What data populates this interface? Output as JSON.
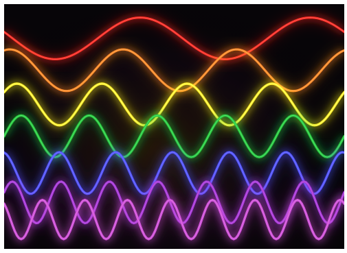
{
  "image": {
    "subject": "rainbow-sine-waves",
    "background_color": "#070508",
    "frame_color": "#ffffff",
    "waves": [
      {
        "name": "red-wave",
        "color": "#ff2a22",
        "cycles": 2,
        "amplitude": 0.085,
        "phase": 0.45,
        "baseline": 0.14
      },
      {
        "name": "orange-wave",
        "color": "#ff8a25",
        "cycles": 3,
        "amplitude": 0.085,
        "phase": 0.2,
        "baseline": 0.27
      },
      {
        "name": "yellow-wave",
        "color": "#fff21e",
        "cycles": 4,
        "amplitude": 0.085,
        "phase": 0.1,
        "baseline": 0.41
      },
      {
        "name": "green-wave",
        "color": "#25cc3e",
        "cycles": 5,
        "amplitude": 0.085,
        "phase": 0.0,
        "baseline": 0.54
      },
      {
        "name": "blue-wave",
        "color": "#4f52ff",
        "cycles": 6,
        "amplitude": 0.085,
        "phase": 0.28,
        "baseline": 0.69
      },
      {
        "name": "violet-wave",
        "color": "#a535d8",
        "cycles": 7,
        "amplitude": 0.085,
        "phase": 0.08,
        "baseline": 0.81
      },
      {
        "name": "magenta-wave",
        "color": "#d04ed9",
        "cycles": 8,
        "amplitude": 0.08,
        "phase": 0.35,
        "baseline": 0.88
      }
    ]
  }
}
